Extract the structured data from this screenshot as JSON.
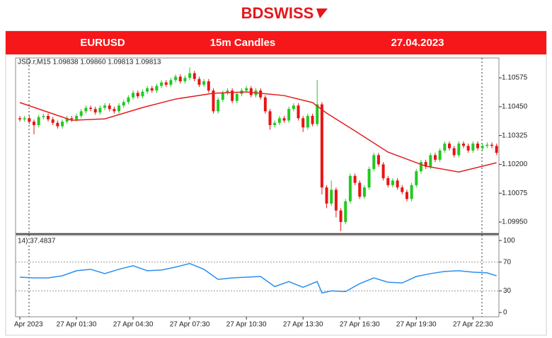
{
  "logo": "BDSWISS",
  "header": {
    "symbol": "EURUSD",
    "timeframe": "15m Candles",
    "date": "27.04.2023"
  },
  "chart_data": {
    "type": "candlestick",
    "info": "JSD.r,M15  1.09838 1.09860 1.09813 1.09813",
    "up_color": "#22c922",
    "down_color": "#e81414",
    "categories": [
      "Apr 2023",
      null,
      null,
      null,
      null,
      null,
      null,
      null,
      null,
      null,
      null,
      null,
      "27 Apr 01:30",
      null,
      null,
      null,
      null,
      null,
      null,
      null,
      null,
      null,
      null,
      null,
      "27 Apr 04:30",
      null,
      null,
      null,
      null,
      null,
      null,
      null,
      null,
      null,
      null,
      null,
      "27 Apr 07:30",
      null,
      null,
      null,
      null,
      null,
      null,
      null,
      null,
      null,
      null,
      null,
      "27 Apr 10:30",
      null,
      null,
      null,
      null,
      null,
      null,
      null,
      null,
      null,
      null,
      null,
      "27 Apr 13:30",
      null,
      null,
      null,
      null,
      null,
      null,
      null,
      null,
      null,
      null,
      null,
      "27 Apr 16:30",
      null,
      null,
      null,
      null,
      null,
      null,
      null,
      null,
      null,
      null,
      null,
      "27 Apr 19:30",
      null,
      null,
      null,
      null,
      null,
      null,
      null,
      null,
      null,
      null,
      null,
      "27 Apr 22:30",
      null,
      null,
      null,
      null,
      null
    ],
    "open": [
      1.104,
      1.10395,
      1.104,
      1.10385,
      1.1037,
      1.10405,
      1.1041,
      1.10395,
      1.1038,
      1.10365,
      1.10385,
      1.104,
      1.10395,
      1.1041,
      1.1043,
      1.10445,
      1.1044,
      1.10425,
      1.10445,
      1.10455,
      1.1044,
      1.1043,
      1.10455,
      1.1047,
      1.1049,
      1.1051,
      1.10495,
      1.10515,
      1.1053,
      1.1052,
      1.1054,
      1.10555,
      1.10545,
      1.10565,
      1.1058,
      1.1056,
      1.10575,
      1.10595,
      1.1057,
      1.10545,
      1.1056,
      1.1052,
      1.1043,
      1.1048,
      1.1051,
      1.1052,
      1.10475,
      1.10505,
      1.1052,
      1.1053,
      1.105,
      1.1052,
      1.1049,
      1.1043,
      1.1037,
      1.1038,
      1.104,
      1.1039,
      1.1044,
      1.10455,
      1.104,
      1.1036,
      1.1041,
      1.10375,
      1.1046,
      1.101,
      1.1003,
      1.1009,
      1.1,
      1.0995,
      1.1004,
      1.1015,
      1.1012,
      1.1006,
      1.101,
      1.1018,
      1.1024,
      1.102,
      1.1014,
      1.1011,
      1.1013,
      1.101,
      1.1008,
      1.1005,
      1.1011,
      1.1017,
      1.1021,
      1.1019,
      1.1024,
      1.1022,
      1.1026,
      1.1029,
      1.1027,
      1.1024,
      1.1029,
      1.1028,
      1.1026,
      1.1029,
      1.1027,
      1.1028,
      1.10285,
      1.1028
    ],
    "high": [
      1.1041,
      1.1041,
      1.1041,
      1.10395,
      1.10415,
      1.1042,
      1.1042,
      1.10405,
      1.1039,
      1.10395,
      1.1041,
      1.1041,
      1.1042,
      1.1044,
      1.10455,
      1.10455,
      1.1045,
      1.10455,
      1.10465,
      1.10465,
      1.1045,
      1.10465,
      1.1048,
      1.105,
      1.1052,
      1.1052,
      1.10525,
      1.1054,
      1.1054,
      1.1055,
      1.10565,
      1.10565,
      1.10575,
      1.1059,
      1.1059,
      1.10585,
      1.1062,
      1.10605,
      1.1058,
      1.1057,
      1.1057,
      1.1053,
      1.1049,
      1.1052,
      1.1053,
      1.1053,
      1.10515,
      1.1053,
      1.1054,
      1.1054,
      1.1053,
      1.1053,
      1.105,
      1.1044,
      1.1039,
      1.1041,
      1.1041,
      1.1045,
      1.10465,
      1.10465,
      1.1041,
      1.1042,
      1.1042,
      1.10565,
      1.1047,
      1.1011,
      1.1013,
      1.101,
      1.1001,
      1.1005,
      1.1016,
      1.1016,
      1.1013,
      1.1011,
      1.1019,
      1.1025,
      1.1025,
      1.1021,
      1.1015,
      1.1014,
      1.1014,
      1.1011,
      1.1009,
      1.1012,
      1.1018,
      1.1022,
      1.1022,
      1.1025,
      1.1025,
      1.1027,
      1.103,
      1.103,
      1.1028,
      1.103,
      1.103,
      1.1029,
      1.103,
      1.103,
      1.1029,
      1.10295,
      1.10295,
      1.1029
    ],
    "low": [
      1.10385,
      1.10385,
      1.10375,
      1.1033,
      1.1036,
      1.10395,
      1.10385,
      1.1037,
      1.10355,
      1.10355,
      1.10375,
      1.10385,
      1.10385,
      1.104,
      1.1042,
      1.1043,
      1.10415,
      1.10415,
      1.10435,
      1.1043,
      1.1042,
      1.1042,
      1.10445,
      1.1046,
      1.1048,
      1.10485,
      1.10485,
      1.10505,
      1.1051,
      1.1051,
      1.1053,
      1.10535,
      1.10535,
      1.10555,
      1.1055,
      1.1055,
      1.10565,
      1.1056,
      1.10535,
      1.10535,
      1.1051,
      1.1042,
      1.1042,
      1.1047,
      1.105,
      1.10465,
      1.10465,
      1.10495,
      1.1051,
      1.1049,
      1.1049,
      1.1048,
      1.1042,
      1.1035,
      1.1036,
      1.1037,
      1.1038,
      1.1038,
      1.1043,
      1.1039,
      1.1034,
      1.1035,
      1.10365,
      1.10365,
      1.1007,
      1.1001,
      1.1002,
      1.0997,
      1.0991,
      1.0994,
      1.1003,
      1.1011,
      1.1005,
      1.1005,
      1.1009,
      1.1017,
      1.1019,
      1.1013,
      1.101,
      1.101,
      1.1009,
      1.1007,
      1.1004,
      1.1004,
      1.101,
      1.1016,
      1.1018,
      1.1018,
      1.1021,
      1.1021,
      1.1025,
      1.1026,
      1.1023,
      1.1023,
      1.1027,
      1.1025,
      1.1025,
      1.1026,
      1.1026,
      1.1027,
      1.1027,
      1.1024
    ],
    "close": [
      1.10395,
      1.104,
      1.10385,
      1.1037,
      1.10405,
      1.1041,
      1.10395,
      1.1038,
      1.10365,
      1.10385,
      1.104,
      1.10395,
      1.1041,
      1.1043,
      1.10445,
      1.1044,
      1.10425,
      1.10445,
      1.10455,
      1.1044,
      1.1043,
      1.10455,
      1.1047,
      1.1049,
      1.1051,
      1.10495,
      1.10515,
      1.1053,
      1.1052,
      1.1054,
      1.10555,
      1.10545,
      1.10565,
      1.1058,
      1.1056,
      1.10575,
      1.10595,
      1.1057,
      1.10545,
      1.1056,
      1.1052,
      1.1043,
      1.1048,
      1.1051,
      1.1052,
      1.10475,
      1.10505,
      1.1052,
      1.1053,
      1.105,
      1.1052,
      1.1049,
      1.1043,
      1.1037,
      1.1038,
      1.104,
      1.1039,
      1.1044,
      1.10455,
      1.104,
      1.1036,
      1.1041,
      1.10375,
      1.1046,
      1.101,
      1.1003,
      1.1009,
      1.1,
      1.0995,
      1.1004,
      1.1015,
      1.1012,
      1.1006,
      1.101,
      1.1018,
      1.1024,
      1.102,
      1.1014,
      1.1011,
      1.1013,
      1.101,
      1.1008,
      1.1005,
      1.1011,
      1.1017,
      1.1021,
      1.1019,
      1.1024,
      1.1022,
      1.1026,
      1.1029,
      1.1027,
      1.1024,
      1.1029,
      1.1028,
      1.1026,
      1.1029,
      1.1027,
      1.1028,
      1.10285,
      1.1028,
      1.1025
    ],
    "ylim": [
      1.09901,
      1.10661
    ],
    "yticks": [
      1.10575,
      {
        "value": 1.1045,
        "label": "1.10450"
      },
      1.10325,
      {
        "value": 1.102,
        "label": "1.10200"
      },
      1.10075,
      {
        "value": 1.0995,
        "label": "1.09950"
      }
    ],
    "ma": {
      "color": "#e51c1c",
      "x": [
        0,
        11,
        18,
        26,
        33,
        41,
        48,
        56,
        62,
        65,
        71,
        78,
        86,
        93,
        101
      ],
      "values": [
        1.10468,
        1.10391,
        1.10397,
        1.10446,
        1.10483,
        1.10508,
        1.10514,
        1.10498,
        1.10468,
        1.10422,
        1.10345,
        1.10253,
        1.10192,
        1.10167,
        1.10207
      ]
    },
    "rsi": {
      "label": "14) 37.4837",
      "color": "#2a8ff0",
      "x": [
        0,
        3,
        6,
        9,
        12,
        15,
        18,
        21,
        24,
        27,
        30,
        33,
        36,
        39,
        42,
        45,
        48,
        51,
        54,
        57,
        60,
        63,
        64,
        66,
        69,
        72,
        75,
        78,
        81,
        84,
        87,
        90,
        93,
        96,
        99,
        101
      ],
      "values": [
        49,
        48,
        48,
        51,
        58,
        60,
        54,
        60,
        65,
        58,
        59,
        63,
        68,
        60,
        46,
        48,
        49,
        50,
        36,
        43,
        35,
        43,
        27,
        30,
        29,
        40,
        48,
        42,
        41,
        50,
        54,
        57,
        58,
        56,
        55,
        51
      ],
      "ylim": [
        -6,
        107
      ],
      "yticks": [
        100,
        70,
        30,
        0
      ],
      "levels": [
        70,
        30
      ]
    }
  }
}
